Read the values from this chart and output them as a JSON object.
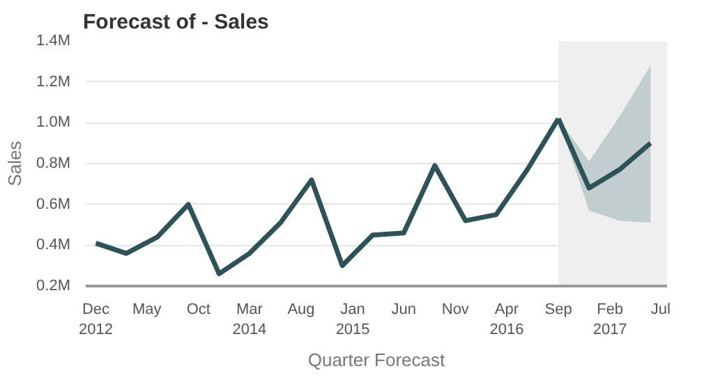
{
  "chart_data": {
    "type": "line",
    "title": "Forecast of - Sales",
    "xlabel": "Quarter Forecast",
    "ylabel": "Sales",
    "series": [
      {
        "color": "#2d5359",
        "x": [
          "2012-12",
          "2013-03",
          "2013-06",
          "2013-09",
          "2013-12",
          "2014-03",
          "2014-06",
          "2014-09",
          "2014-12",
          "2015-03",
          "2015-06",
          "2015-09",
          "2015-12",
          "2016-03",
          "2016-06",
          "2016-09"
        ],
        "values": [
          0.41,
          0.36,
          0.44,
          0.6,
          0.26,
          0.36,
          0.51,
          0.72,
          0.3,
          0.45,
          0.46,
          0.79,
          0.52,
          0.55,
          0.77,
          1.02
        ]
      },
      {
        "color": "#2d5359",
        "x": [
          "2016-09",
          "2016-12",
          "2017-03",
          "2017-06"
        ],
        "values": [
          1.02,
          0.68,
          0.77,
          0.9
        ],
        "lower": [
          1.02,
          0.57,
          0.52,
          0.51
        ],
        "upper": [
          1.02,
          0.81,
          1.03,
          1.28
        ]
      }
    ],
    "xlim": [
      "2012-11-01",
      "2017-07-20"
    ],
    "ylim": [
      0.2,
      1.4
    ],
    "xticks": [
      {
        "value": "2012-12",
        "label": "Dec\n2012"
      },
      {
        "value": "2013-05",
        "label": "May"
      },
      {
        "value": "2013-10",
        "label": "Oct"
      },
      {
        "value": "2014-03",
        "label": "Mar\n2014"
      },
      {
        "value": "2014-08",
        "label": "Aug"
      },
      {
        "value": "2015-01",
        "label": "Jan\n2015"
      },
      {
        "value": "2015-06",
        "label": "Jun"
      },
      {
        "value": "2015-11",
        "label": "Nov"
      },
      {
        "value": "2016-04",
        "label": "Apr\n2016"
      },
      {
        "value": "2016-09",
        "label": "Sep"
      },
      {
        "value": "2017-02",
        "label": "Feb\n2017"
      },
      {
        "value": "2017-07",
        "label": "Jul"
      }
    ],
    "yticks": [
      {
        "value": 0.2,
        "label": "0.2M"
      },
      {
        "value": 0.4,
        "label": "0.4M"
      },
      {
        "value": 0.6,
        "label": "0.6M"
      },
      {
        "value": 0.8,
        "label": "0.8M"
      },
      {
        "value": 1.0,
        "label": "1.0M"
      },
      {
        "value": 1.2,
        "label": "1.2M"
      },
      {
        "value": 1.4,
        "label": "1.4M"
      }
    ],
    "bands": [
      {
        "axis": "x",
        "from": "2016-09",
        "to": "2017-07-20",
        "color": "#efefef"
      }
    ],
    "grid": "y",
    "marker": "none",
    "line_style": "solid"
  }
}
